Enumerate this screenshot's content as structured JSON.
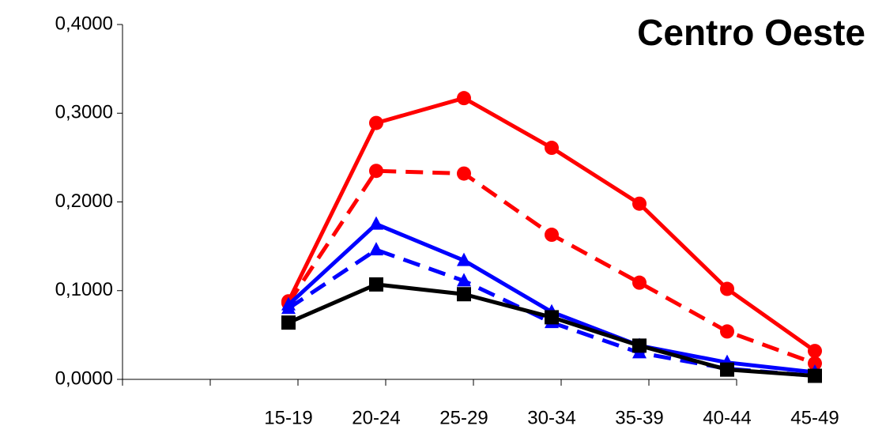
{
  "chart_data": {
    "type": "line",
    "title": "Centro Oeste",
    "categories": [
      "15-19",
      "20-24",
      "25-29",
      "30-34",
      "35-39",
      "40-44",
      "45-49"
    ],
    "series": [
      {
        "color": "#ff0000",
        "dash": false,
        "marker": "circle",
        "values": [
          0.088,
          0.289,
          0.317,
          0.261,
          0.198,
          0.102,
          0.032
        ]
      },
      {
        "color": "#ff0000",
        "dash": true,
        "marker": "circle",
        "values": [
          0.086,
          0.235,
          0.232,
          0.163,
          0.109,
          0.054,
          0.018
        ]
      },
      {
        "color": "#0000ff",
        "dash": false,
        "marker": "triangle",
        "values": [
          0.084,
          0.175,
          0.134,
          0.076,
          0.038,
          0.019,
          0.008
        ]
      },
      {
        "color": "#0000ff",
        "dash": true,
        "marker": "triangle",
        "values": [
          0.08,
          0.146,
          0.111,
          0.064,
          0.03,
          0.012,
          0.004
        ]
      },
      {
        "color": "#000000",
        "dash": false,
        "marker": "square",
        "values": [
          0.064,
          0.107,
          0.096,
          0.07,
          0.038,
          0.011,
          0.004
        ]
      }
    ],
    "ylim": [
      0,
      0.4
    ],
    "yticks": [
      {
        "value": 0,
        "label": "0,0000"
      },
      {
        "value": 0.1,
        "label": "0,1000"
      },
      {
        "value": 0.2,
        "label": "0,2000"
      },
      {
        "value": 0.3,
        "label": "0,3000"
      },
      {
        "value": 0.4,
        "label": "0,4000"
      }
    ],
    "grid": false
  }
}
